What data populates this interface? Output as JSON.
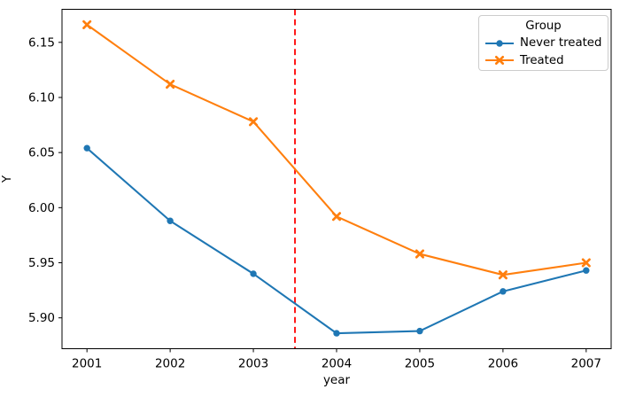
{
  "chart_data": {
    "type": "line",
    "x": [
      2001,
      2002,
      2003,
      2004,
      2005,
      2006,
      2007
    ],
    "series": [
      {
        "name": "Never treated",
        "color": "#1f77b4",
        "marker": "circle",
        "values": [
          6.054,
          5.988,
          5.94,
          5.886,
          5.888,
          5.924,
          5.943
        ]
      },
      {
        "name": "Treated",
        "color": "#ff7f0e",
        "marker": "x",
        "values": [
          6.166,
          6.112,
          6.078,
          5.992,
          5.958,
          5.939,
          5.95
        ]
      }
    ],
    "vline": {
      "x": 2003.5,
      "color": "#ff0000",
      "style": "dashed"
    },
    "title": "",
    "xlabel": "year",
    "ylabel": "Y",
    "legend_title": "Group",
    "legend_position": "upper right",
    "xlim": [
      2000.7,
      2007.3
    ],
    "ylim": [
      5.872,
      6.18
    ],
    "xticks": [
      2001,
      2002,
      2003,
      2004,
      2005,
      2006,
      2007
    ],
    "xtick_labels": [
      "2001",
      "2002",
      "2003",
      "2004",
      "2005",
      "2006",
      "2007"
    ],
    "yticks": [
      5.9,
      5.95,
      6.0,
      6.05,
      6.1,
      6.15
    ],
    "ytick_labels": [
      "5.90",
      "5.95",
      "6.00",
      "6.05",
      "6.10",
      "6.15"
    ],
    "grid": false,
    "axis_color": "#000000",
    "text_color": "#000000",
    "background_color": "#ffffff"
  }
}
